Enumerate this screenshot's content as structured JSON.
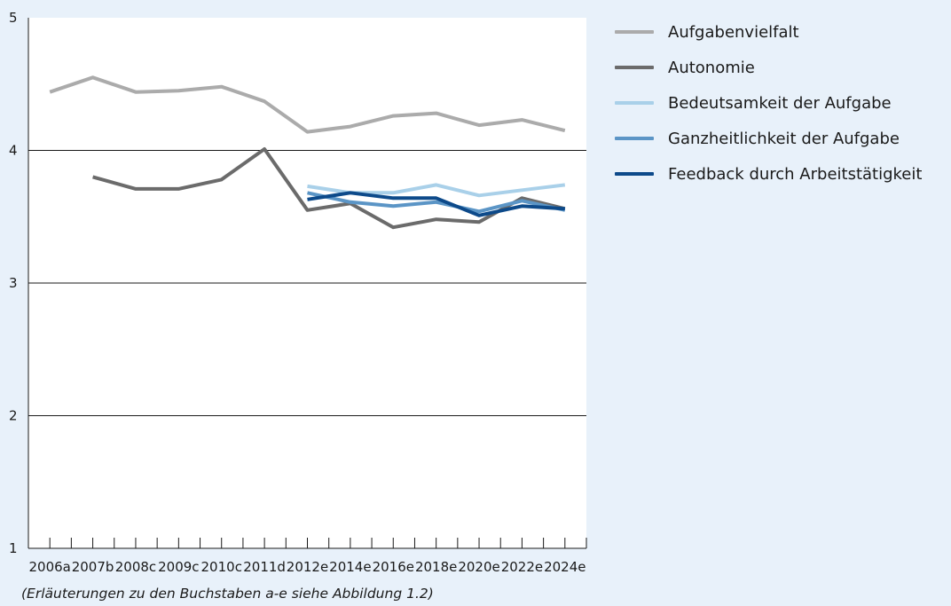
{
  "chart_data": {
    "type": "line",
    "categories": [
      "2006a",
      "2007b",
      "2008c",
      "2009c",
      "2010c",
      "2011d",
      "2012e",
      "2014e",
      "2016e",
      "2018e",
      "2020e",
      "2022e",
      "2024e"
    ],
    "x": [
      2006,
      2007,
      2008,
      2009,
      2010,
      2011,
      2012,
      2013,
      2014,
      2015,
      2016,
      2017,
      2018,
      2019,
      2020,
      2021,
      2022,
      2023,
      2024,
      2025
    ],
    "ylim": [
      1,
      5
    ],
    "yticks": [
      1,
      2,
      3,
      4,
      5
    ],
    "grid": true,
    "legend_position": "right",
    "series": [
      {
        "name": "Aufgabenvielfalt",
        "color": "#ababab",
        "values": [
          4.44,
          4.55,
          4.44,
          4.45,
          4.48,
          4.37,
          4.14,
          4.18,
          4.26,
          4.28,
          4.19,
          4.23,
          4.15
        ]
      },
      {
        "name": "Autonomie",
        "color": "#6b6b6b",
        "values": [
          null,
          3.8,
          3.71,
          3.71,
          3.78,
          4.01,
          3.55,
          3.6,
          3.42,
          3.48,
          3.46,
          3.64,
          3.56
        ]
      },
      {
        "name": "Bedeutsamkeit der Aufgabe",
        "color": "#a9d0e9",
        "values": [
          null,
          null,
          null,
          null,
          null,
          null,
          3.73,
          3.68,
          3.68,
          3.74,
          3.66,
          3.7,
          3.74
        ]
      },
      {
        "name": "Ganzheitlichkeit der Aufgabe",
        "color": "#5b95c6",
        "values": [
          null,
          null,
          null,
          null,
          null,
          null,
          3.68,
          3.61,
          3.58,
          3.61,
          3.54,
          3.62,
          3.55
        ]
      },
      {
        "name": "Feedback durch Arbeitstätigkeit",
        "color": "#0d4a8a",
        "values": [
          null,
          null,
          null,
          null,
          null,
          null,
          3.63,
          3.68,
          3.64,
          3.64,
          3.51,
          3.58,
          3.56
        ]
      }
    ]
  },
  "footnote": "(Erläuterungen zu den Buchstaben a-e siehe Abbildung 1.2)"
}
